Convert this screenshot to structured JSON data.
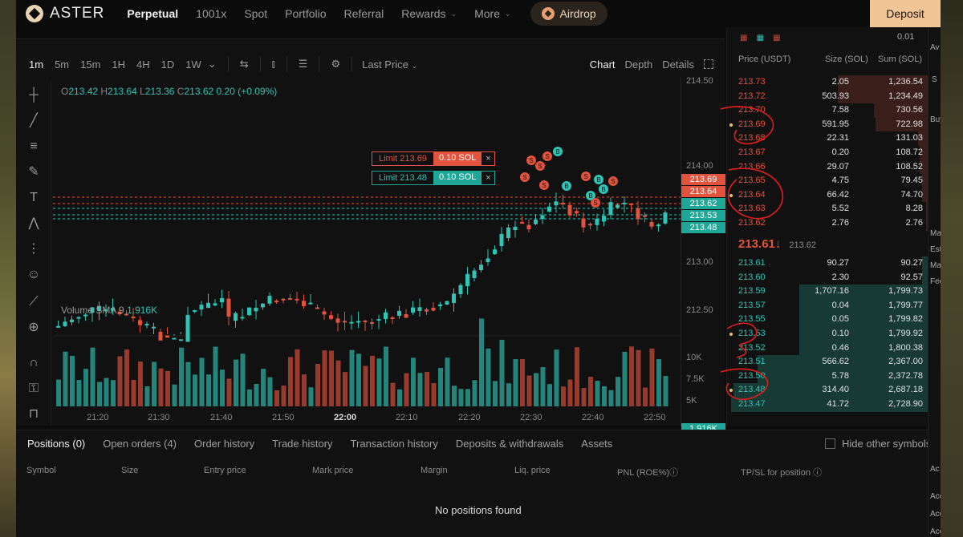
{
  "nav": {
    "brand": "ASTER",
    "items": [
      "Perpetual",
      "1001x",
      "Spot",
      "Portfolio",
      "Referral",
      "Rewards",
      "More"
    ],
    "airdrop": "Airdrop",
    "deposit": "Deposit"
  },
  "toolbar": {
    "timeframes": [
      "1m",
      "5m",
      "15m",
      "1H",
      "4H",
      "1D",
      "1W"
    ],
    "price_source": "Last Price",
    "views": [
      "Chart",
      "Depth",
      "Details"
    ]
  },
  "ohlc": {
    "o": "213.42",
    "h": "213.64",
    "l": "213.36",
    "c": "213.62",
    "change": "0.20 (+0.09%)"
  },
  "volume": {
    "label": "Volume SMA 9",
    "value": "1.916K"
  },
  "price_axis": {
    "labels": [
      "214.50",
      "214.00",
      "213.00",
      "212.50"
    ],
    "vol_labels": [
      "10K",
      "7.5K",
      "5K"
    ],
    "tags": [
      {
        "text": "213.69",
        "color": "#e2533d"
      },
      {
        "text": "213.64",
        "color": "#e2533d"
      },
      {
        "text": "213.62",
        "color": "#1ea797"
      },
      {
        "text": "213.53",
        "color": "#1ea797"
      },
      {
        "text": "213.48",
        "color": "#1ea797"
      }
    ],
    "vol_tag": "1.916K"
  },
  "limits": [
    {
      "label": "Limit 213.69",
      "qty": "0.10 SOL"
    },
    {
      "label": "Limit 213.48",
      "qty": "0.10 SOL"
    }
  ],
  "time_axis": [
    "21:20",
    "21:30",
    "21:40",
    "21:50",
    "22:00",
    "22:10",
    "22:20",
    "22:30",
    "22:40",
    "22:50"
  ],
  "orderbook": {
    "decimals": "0.01",
    "headers": [
      "Price (USDT)",
      "Size (SOL)",
      "Sum (SOL)"
    ],
    "asks": [
      {
        "price": "213.73",
        "size": "2.05",
        "sum": "1,236.54",
        "depth": 0.45
      },
      {
        "price": "213.72",
        "size": "503.93",
        "sum": "1,234.49",
        "depth": 0.45
      },
      {
        "price": "213.70",
        "size": "7.58",
        "sum": "730.56",
        "depth": 0.27
      },
      {
        "price": "213.69",
        "size": "591.95",
        "sum": "722.98",
        "depth": 0.26
      },
      {
        "price": "213.68",
        "size": "22.31",
        "sum": "131.03",
        "depth": 0.05
      },
      {
        "price": "213.67",
        "size": "0.20",
        "sum": "108.72",
        "depth": 0.04
      },
      {
        "price": "213.66",
        "size": "29.07",
        "sum": "108.52",
        "depth": 0.04
      },
      {
        "price": "213.65",
        "size": "4.75",
        "sum": "79.45",
        "depth": 0.03
      },
      {
        "price": "213.64",
        "size": "66.42",
        "sum": "74.70",
        "depth": 0.03
      },
      {
        "price": "213.63",
        "size": "5.52",
        "sum": "8.28",
        "depth": 0.01
      },
      {
        "price": "213.62",
        "size": "2.76",
        "sum": "2.76",
        "depth": 0.01
      }
    ],
    "last_price": "213.61↓",
    "mark_price": "213.62",
    "bids": [
      {
        "price": "213.61",
        "size": "90.27",
        "sum": "90.27",
        "depth": 0.03
      },
      {
        "price": "213.60",
        "size": "2.30",
        "sum": "92.57",
        "depth": 0.03
      },
      {
        "price": "213.59",
        "size": "1,707.16",
        "sum": "1,799.73",
        "depth": 0.64
      },
      {
        "price": "213.57",
        "size": "0.04",
        "sum": "1,799.77",
        "depth": 0.64
      },
      {
        "price": "213.55",
        "size": "0.05",
        "sum": "1,799.82",
        "depth": 0.64
      },
      {
        "price": "213.53",
        "size": "0.10",
        "sum": "1,799.92",
        "depth": 0.64
      },
      {
        "price": "213.52",
        "size": "0.46",
        "sum": "1,800.38",
        "depth": 0.64
      },
      {
        "price": "213.51",
        "size": "566.62",
        "sum": "2,367.00",
        "depth": 0.85
      },
      {
        "price": "213.50",
        "size": "5.78",
        "sum": "2,372.78",
        "depth": 0.85
      },
      {
        "price": "213.48",
        "size": "314.40",
        "sum": "2,687.18",
        "depth": 0.97
      },
      {
        "price": "213.47",
        "size": "41.72",
        "sum": "2,728.90",
        "depth": 0.98
      }
    ]
  },
  "bottom": {
    "tabs": [
      "Positions (0)",
      "Open orders (4)",
      "Order history",
      "Trade history",
      "Transaction history",
      "Deposits & withdrawals",
      "Assets"
    ],
    "hide_other": "Hide other symbols",
    "columns": [
      "Symbol",
      "Size",
      "Entry price",
      "Mark price",
      "Margin",
      "Liq. price",
      "PNL (ROE%)ⓘ",
      "TP/SL for position ⓘ"
    ],
    "empty": "No positions found"
  },
  "right_cut": [
    "Av",
    "S",
    "Buy",
    "Ma",
    "Est",
    "Ma",
    "Fee",
    "Ac",
    "Acc",
    "Acc",
    "Acc"
  ],
  "colors": {
    "up": "#2ec4b6",
    "down": "#e2533d",
    "accent": "#f2c597"
  }
}
